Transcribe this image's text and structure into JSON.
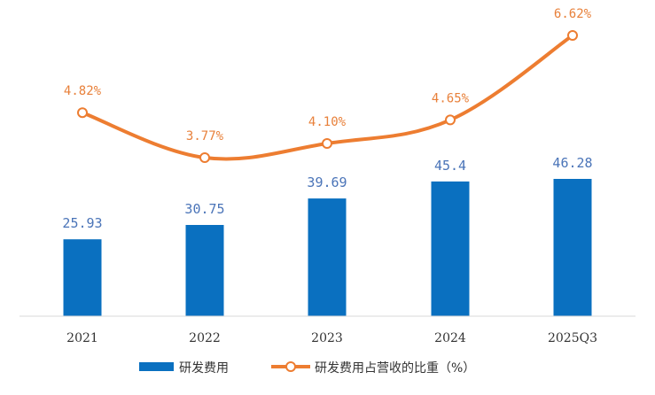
{
  "chart_data": {
    "type": "bar",
    "title": "",
    "categories": [
      "2021",
      "2022",
      "2023",
      "2024",
      "2025Q3"
    ],
    "series": [
      {
        "name": "研发费用",
        "type": "bar",
        "values": [
          25.93,
          30.75,
          39.69,
          45.4,
          46.28
        ],
        "labels": [
          "25.93",
          "30.75",
          "39.69",
          "45.4",
          "46.28"
        ],
        "color": "#0a70c0"
      },
      {
        "name": "研发费用占营收的比重（%）",
        "type": "line",
        "values": [
          4.82,
          3.77,
          4.1,
          4.65,
          6.62
        ],
        "labels": [
          "4.82%",
          "3.77%",
          "4.10%",
          "4.65%",
          "6.62%"
        ],
        "color": "#ed7d31"
      }
    ],
    "xlabel": "",
    "ylabel": "",
    "bar_axis": [
      0,
      60
    ],
    "line_axis": [
      1,
      7
    ],
    "legend_position": "bottom",
    "grid": false
  }
}
